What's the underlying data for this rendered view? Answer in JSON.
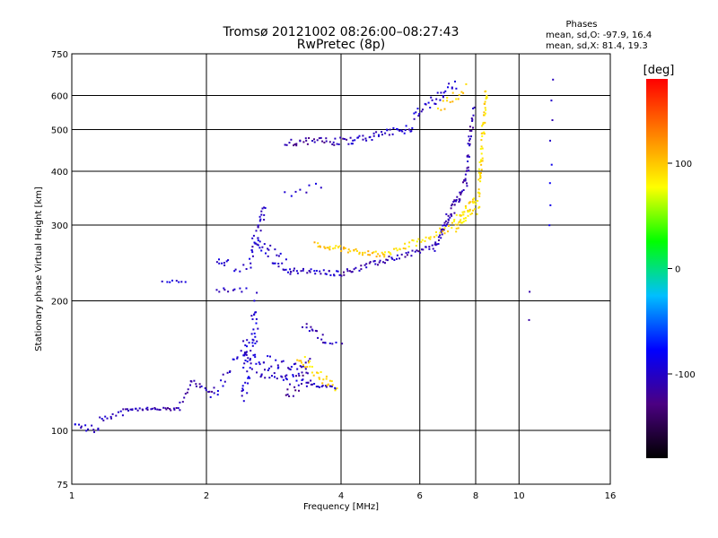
{
  "chart_data": {
    "type": "scatter",
    "title": "Tromsø 20121002 08:26:00–08:27:43",
    "subtitle": "RwPretec (8p)",
    "xlabel": "Frequency [MHz]",
    "ylabel": "Stationary phase Virtual Height [km]",
    "x_scale": "log",
    "y_scale": "log",
    "xlim": [
      1,
      16
    ],
    "ylim": [
      75,
      750
    ],
    "x_ticks": [
      1,
      2,
      4,
      6,
      8,
      10,
      16
    ],
    "y_ticks": [
      75,
      100,
      200,
      300,
      400,
      500,
      600,
      750
    ],
    "grid": true,
    "stats": {
      "heading": "Phases",
      "line_o": "mean, sd,O: -97.9, 16.4",
      "line_x": "mean, sd,X:  81.4, 19.3"
    },
    "colorbar": {
      "label": "[deg]",
      "range": [
        -180,
        180
      ],
      "ticks": [
        100,
        0,
        -100
      ],
      "colors": [
        "#000000",
        "#4b0082",
        "#0000ff",
        "#00bfff",
        "#00ff00",
        "#ffff00",
        "#ff8000",
        "#ff0000"
      ]
    },
    "series": [
      {
        "traces": [
          {
            "x1": 1.0,
            "x2": 1.15,
            "y1": 103,
            "y2": 100,
            "n": 14,
            "phase": -100,
            "j": 0.02
          },
          {
            "x1": 1.15,
            "x2": 1.3,
            "y1": 106,
            "y2": 110,
            "n": 12,
            "phase": -100,
            "j": 0.015
          },
          {
            "x1": 1.3,
            "x2": 1.75,
            "y1": 112,
            "y2": 112,
            "n": 34,
            "phase": -110,
            "j": 0.008
          },
          {
            "x1": 1.75,
            "x2": 1.85,
            "y1": 115,
            "y2": 130,
            "n": 8,
            "phase": -110,
            "j": 0.01
          },
          {
            "x1": 1.85,
            "x2": 2.05,
            "y1": 130,
            "y2": 122,
            "n": 12,
            "phase": -110,
            "j": 0.01
          },
          {
            "x1": 2.05,
            "x2": 2.45,
            "y1": 118,
            "y2": 160,
            "n": 20,
            "phase": -100,
            "j": 0.04
          },
          {
            "x1": 2.4,
            "x2": 2.6,
            "y1": 125,
            "y2": 185,
            "n": 55,
            "phase": -95,
            "j": 0.14
          },
          {
            "x1": 2.55,
            "x2": 3.4,
            "y1": 145,
            "y2": 130,
            "n": 60,
            "phase": -100,
            "j": 0.07
          },
          {
            "x1": 3.0,
            "x2": 3.4,
            "y1": 118,
            "y2": 140,
            "n": 18,
            "phase": -120,
            "j": 0.06
          },
          {
            "x1": 3.4,
            "x2": 3.9,
            "y1": 128,
            "y2": 126,
            "n": 16,
            "phase": -100,
            "j": 0.01
          },
          {
            "x1": 3.2,
            "x2": 3.9,
            "y1": 150,
            "y2": 124,
            "n": 30,
            "phase": 95,
            "j": 0.03
          },
          {
            "x1": 3.3,
            "x2": 3.7,
            "y1": 176,
            "y2": 162,
            "n": 14,
            "phase": -110,
            "j": 0.02
          },
          {
            "x1": 3.7,
            "x2": 4.0,
            "y1": 160,
            "y2": 160,
            "n": 5,
            "phase": -100,
            "j": 0.01
          },
          {
            "x1": 2.5,
            "x2": 2.7,
            "y1": 250,
            "y2": 330,
            "n": 30,
            "phase": -100,
            "j": 0.05
          },
          {
            "x1": 2.6,
            "x2": 3.1,
            "y1": 270,
            "y2": 240,
            "n": 30,
            "phase": -100,
            "j": 0.05
          },
          {
            "x1": 2.1,
            "x2": 2.25,
            "y1": 245,
            "y2": 245,
            "n": 8,
            "phase": -100,
            "j": 0.02
          },
          {
            "x1": 2.3,
            "x2": 2.5,
            "y1": 235,
            "y2": 240,
            "n": 6,
            "phase": -100,
            "j": 0.02
          },
          {
            "x1": 1.6,
            "x2": 1.8,
            "y1": 222,
            "y2": 222,
            "n": 8,
            "phase": -100,
            "j": 0.005
          },
          {
            "x1": 2.1,
            "x2": 2.45,
            "y1": 212,
            "y2": 212,
            "n": 10,
            "phase": -100,
            "j": 0.01
          },
          {
            "x1": 3.1,
            "x2": 4.0,
            "y1": 235,
            "y2": 232,
            "n": 28,
            "phase": -100,
            "j": 0.015
          },
          {
            "x1": 4.0,
            "x2": 6.5,
            "y1": 232,
            "y2": 268,
            "n": 55,
            "phase": -110,
            "j": 0.015
          },
          {
            "x1": 6.5,
            "x2": 7.6,
            "y1": 268,
            "y2": 380,
            "n": 60,
            "phase": -110,
            "j": 0.03
          },
          {
            "x1": 7.6,
            "x2": 7.9,
            "y1": 380,
            "y2": 560,
            "n": 30,
            "phase": -110,
            "j": 0.04
          },
          {
            "x1": 3.5,
            "x2": 5.0,
            "y1": 270,
            "y2": 255,
            "n": 45,
            "phase": 100,
            "j": 0.015
          },
          {
            "x1": 5.0,
            "x2": 7.2,
            "y1": 255,
            "y2": 300,
            "n": 40,
            "phase": 90,
            "j": 0.02
          },
          {
            "x1": 7.2,
            "x2": 8.0,
            "y1": 300,
            "y2": 340,
            "n": 45,
            "phase": 90,
            "j": 0.04
          },
          {
            "x1": 8.1,
            "x2": 8.45,
            "y1": 330,
            "y2": 620,
            "n": 55,
            "phase": 90,
            "j": 0.05
          },
          {
            "x1": 3.0,
            "x2": 4.2,
            "y1": 468,
            "y2": 470,
            "n": 38,
            "phase": -115,
            "j": 0.02
          },
          {
            "x1": 4.2,
            "x2": 5.8,
            "y1": 470,
            "y2": 505,
            "n": 40,
            "phase": -100,
            "j": 0.02
          },
          {
            "x1": 5.8,
            "x2": 7.2,
            "y1": 540,
            "y2": 640,
            "n": 30,
            "phase": -100,
            "j": 0.03
          },
          {
            "x1": 6.6,
            "x2": 7.6,
            "y1": 560,
            "y2": 620,
            "n": 15,
            "phase": 95,
            "j": 0.03
          },
          {
            "x1": 3.0,
            "x2": 3.6,
            "y1": 360,
            "y2": 365,
            "n": 8,
            "phase": -100,
            "j": 0.03
          },
          {
            "x1": 10.5,
            "x2": 10.5,
            "y1": 180,
            "y2": 210,
            "n": 2,
            "phase": -100,
            "j": 0.005
          },
          {
            "x1": 11.7,
            "x2": 11.9,
            "y1": 300,
            "y2": 650,
            "n": 8,
            "phase": -95,
            "j": 0.01
          }
        ]
      }
    ]
  }
}
